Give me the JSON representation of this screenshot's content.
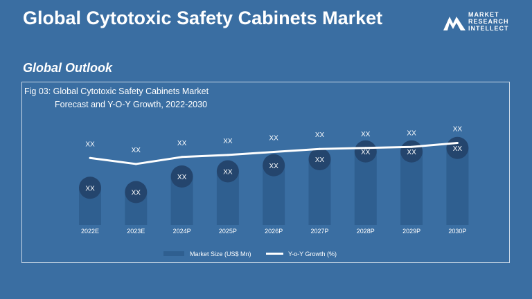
{
  "header": {
    "title": "Global Cytotoxic Safety Cabinets Market",
    "subtitle": "Global Outlook"
  },
  "logo": {
    "line1": "MARKET",
    "line2": "RESEARCH",
    "line3": "INTELLECT",
    "icon": "mountain-m-logo-icon"
  },
  "colors": {
    "background": "#3a6ea2",
    "bar": "#2f5f90",
    "bubble": "#24456d",
    "line": "#ffffff"
  },
  "chart_data": {
    "type": "bar",
    "title_line1": "Fig 03: Global Cytotoxic Safety Cabinets Market",
    "title_line2": "Forecast and Y-O-Y Growth, 2022-2030",
    "categories": [
      "2022E",
      "2023E",
      "2024P",
      "2025P",
      "2026P",
      "2027P",
      "2028P",
      "2029P",
      "2030P"
    ],
    "series": [
      {
        "name": "Market Size (US$ Mn)",
        "type": "bar",
        "values": [
          4.3,
          3.8,
          5.6,
          6.2,
          6.9,
          7.6,
          8.5,
          8.5,
          8.9
        ],
        "labels": [
          "XX",
          "XX",
          "XX",
          "XX",
          "XX",
          "XX",
          "XX",
          "XX",
          "XX"
        ]
      },
      {
        "name": "Y-o-Y Growth (%)",
        "type": "line",
        "values": [
          7.5,
          6.9,
          7.6,
          7.8,
          8.1,
          8.4,
          8.5,
          8.6,
          9.0
        ],
        "labels": [
          "XX",
          "XX",
          "XX",
          "XX",
          "XX",
          "XX",
          "XX",
          "XX",
          "XX"
        ]
      }
    ],
    "ylim": [
      0,
      12
    ],
    "grid": false,
    "legend": "bottom-center"
  }
}
